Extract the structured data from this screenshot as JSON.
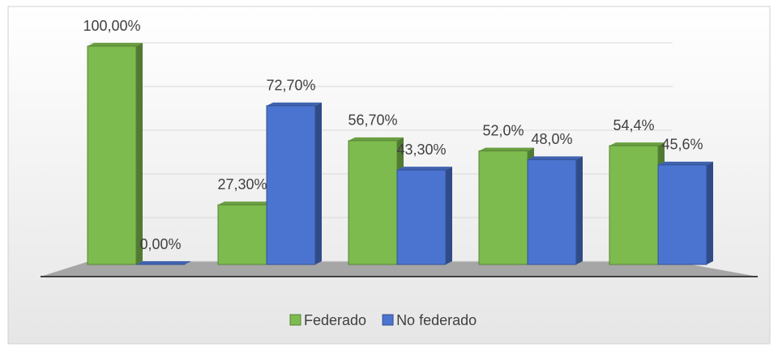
{
  "chart_data": {
    "type": "bar3d",
    "categories": [
      null,
      null,
      null,
      null,
      null
    ],
    "series": [
      {
        "name": "Federado",
        "color": "#7dbb4e",
        "values": [
          100,
          27.3,
          56.7,
          52.0,
          54.4
        ],
        "value_labels": [
          "100,00%",
          "27,30%",
          "56,70%",
          "52,0%",
          "54,4%"
        ]
      },
      {
        "name": "No federado",
        "color": "#4a74cf",
        "values": [
          0,
          72.7,
          43.3,
          48.0,
          45.6
        ],
        "value_labels": [
          "0,00%",
          "72,70%",
          "43,30%",
          "48,0%",
          "45,6%"
        ]
      }
    ],
    "ylim": [
      0,
      100
    ],
    "yticks": [
      0,
      20,
      40,
      60,
      80,
      100
    ],
    "grid": true,
    "legend": "bottom"
  }
}
